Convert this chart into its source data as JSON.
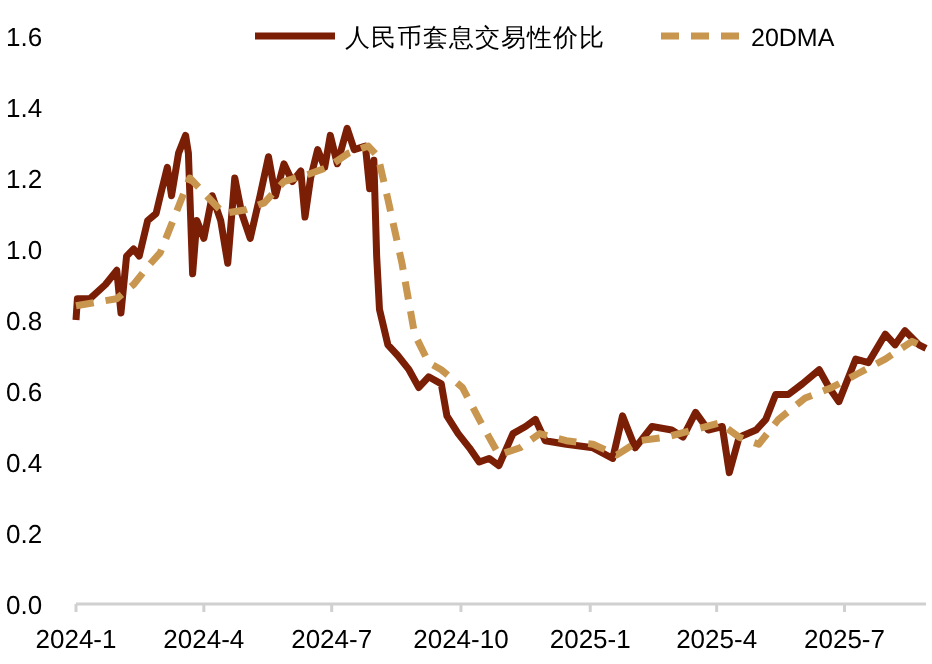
{
  "chart_data": {
    "type": "line",
    "legend": "top",
    "grid": false,
    "xlim": [
      "2024-01-01",
      "2025-08-28"
    ],
    "xticks": [
      {
        "value": "2024-01-01",
        "label": "2024-1"
      },
      {
        "value": "2024-04-01",
        "label": "2024-4"
      },
      {
        "value": "2024-07-01",
        "label": "2024-7"
      },
      {
        "value": "2024-10-01",
        "label": "2024-10"
      },
      {
        "value": "2025-01-01",
        "label": "2025-1"
      },
      {
        "value": "2025-04-01",
        "label": "2025-4"
      },
      {
        "value": "2025-07-01",
        "label": "2025-7"
      }
    ],
    "ylim": [
      0,
      1.6
    ],
    "yticks": [
      {
        "value": 0,
        "label": "0.0"
      },
      {
        "value": 0.2,
        "label": "0.2"
      },
      {
        "value": 0.4,
        "label": "0.4"
      },
      {
        "value": 0.6,
        "label": "0.6"
      },
      {
        "value": 0.8,
        "label": "0.8"
      },
      {
        "value": 1.0,
        "label": "1.0"
      },
      {
        "value": 1.2,
        "label": "1.2"
      },
      {
        "value": 1.4,
        "label": "1.4"
      },
      {
        "value": 1.6,
        "label": "1.6"
      }
    ],
    "series": [
      {
        "name": "人民币套息交易性价比",
        "color": "#7b1e06",
        "line_style": "solid",
        "x": [
          "2024-01-01",
          "2024-01-02",
          "2024-01-11",
          "2024-01-22",
          "2024-01-30",
          "2024-02-02",
          "2024-02-06",
          "2024-02-11",
          "2024-02-15",
          "2024-02-21",
          "2024-02-27",
          "2024-03-01",
          "2024-03-06",
          "2024-03-09",
          "2024-03-14",
          "2024-03-19",
          "2024-03-21",
          "2024-03-24",
          "2024-03-27",
          "2024-04-01",
          "2024-04-07",
          "2024-04-13",
          "2024-04-18",
          "2024-04-23",
          "2024-04-28",
          "2024-05-04",
          "2024-05-11",
          "2024-05-17",
          "2024-05-22",
          "2024-05-28",
          "2024-06-03",
          "2024-06-09",
          "2024-06-12",
          "2024-06-16",
          "2024-06-21",
          "2024-06-26",
          "2024-06-30",
          "2024-07-05",
          "2024-07-12",
          "2024-07-17",
          "2024-07-25",
          "2024-07-28",
          "2024-07-31",
          "2024-08-02",
          "2024-08-04",
          "2024-08-10",
          "2024-08-17",
          "2024-08-25",
          "2024-09-01",
          "2024-09-08",
          "2024-09-17",
          "2024-09-21",
          "2024-09-29",
          "2024-10-07",
          "2024-10-14",
          "2024-10-21",
          "2024-10-28",
          "2024-11-07",
          "2024-11-16",
          "2024-11-23",
          "2024-11-30",
          "2024-12-15",
          "2025-01-03",
          "2025-01-17",
          "2025-01-24",
          "2025-02-02",
          "2025-02-14",
          "2025-02-28",
          "2025-03-08",
          "2025-03-17",
          "2025-03-26",
          "2025-04-05",
          "2025-04-10",
          "2025-04-17",
          "2025-04-29",
          "2025-05-06",
          "2025-05-13",
          "2025-05-22",
          "2025-06-01",
          "2025-06-13",
          "2025-06-20",
          "2025-06-27",
          "2025-07-09",
          "2025-07-18",
          "2025-07-30",
          "2025-08-06",
          "2025-08-13",
          "2025-08-23",
          "2025-08-28"
        ],
        "values": [
          0.8,
          0.86,
          0.86,
          0.9,
          0.94,
          0.82,
          0.98,
          1.0,
          0.98,
          1.08,
          1.1,
          1.15,
          1.23,
          1.15,
          1.27,
          1.32,
          1.27,
          0.93,
          1.08,
          1.03,
          1.15,
          1.08,
          0.96,
          1.2,
          1.1,
          1.03,
          1.15,
          1.26,
          1.15,
          1.24,
          1.19,
          1.22,
          1.09,
          1.2,
          1.28,
          1.23,
          1.32,
          1.24,
          1.34,
          1.28,
          1.29,
          1.17,
          1.25,
          0.98,
          0.83,
          0.73,
          0.7,
          0.66,
          0.61,
          0.64,
          0.62,
          0.53,
          0.48,
          0.44,
          0.4,
          0.41,
          0.39,
          0.48,
          0.5,
          0.52,
          0.46,
          0.45,
          0.44,
          0.41,
          0.53,
          0.44,
          0.5,
          0.49,
          0.47,
          0.54,
          0.49,
          0.5,
          0.37,
          0.47,
          0.49,
          0.52,
          0.59,
          0.59,
          0.62,
          0.66,
          0.61,
          0.57,
          0.69,
          0.68,
          0.76,
          0.73,
          0.77,
          0.73,
          0.72
        ]
      },
      {
        "name": "20DMA",
        "color": "#c8964f",
        "line_style": "dashed",
        "x": [
          "2024-01-01",
          "2024-01-30",
          "2024-02-11",
          "2024-02-21",
          "2024-03-01",
          "2024-03-22",
          "2024-04-03",
          "2024-04-15",
          "2024-04-30",
          "2024-05-14",
          "2024-05-28",
          "2024-06-14",
          "2024-06-28",
          "2024-07-13",
          "2024-07-27",
          "2024-08-03",
          "2024-08-10",
          "2024-08-20",
          "2024-08-29",
          "2024-09-08",
          "2024-09-17",
          "2024-10-02",
          "2024-10-14",
          "2024-10-28",
          "2024-11-12",
          "2024-11-26",
          "2024-12-15",
          "2025-01-03",
          "2025-01-20",
          "2025-02-05",
          "2025-02-24",
          "2025-03-15",
          "2025-04-03",
          "2025-04-17",
          "2025-05-01",
          "2025-05-15",
          "2025-06-03",
          "2025-06-22",
          "2025-07-11",
          "2025-07-30",
          "2025-08-18",
          "2025-08-28"
        ],
        "values": [
          0.84,
          0.86,
          0.9,
          0.95,
          0.99,
          1.2,
          1.15,
          1.1,
          1.11,
          1.13,
          1.19,
          1.21,
          1.23,
          1.27,
          1.29,
          1.26,
          1.14,
          0.96,
          0.76,
          0.68,
          0.66,
          0.61,
          0.52,
          0.42,
          0.44,
          0.48,
          0.46,
          0.45,
          0.42,
          0.46,
          0.47,
          0.49,
          0.51,
          0.47,
          0.45,
          0.52,
          0.58,
          0.61,
          0.65,
          0.69,
          0.74,
          0.72
        ]
      }
    ]
  }
}
